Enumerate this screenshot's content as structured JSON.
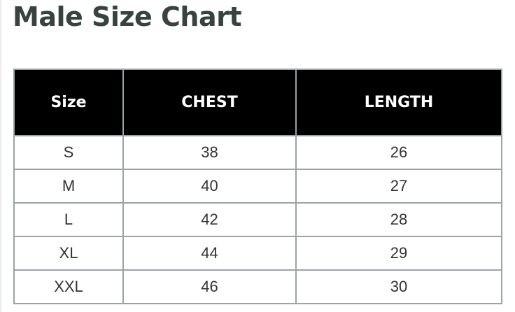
{
  "title": "Male Size Chart",
  "table": {
    "headers": [
      "Size",
      "CHEST",
      "LENGTH"
    ],
    "rows": [
      [
        "S",
        "38",
        "26"
      ],
      [
        "M",
        "40",
        "27"
      ],
      [
        "L",
        "42",
        "28"
      ],
      [
        "XL",
        "44",
        "29"
      ],
      [
        "XXL",
        "46",
        "30"
      ]
    ]
  }
}
